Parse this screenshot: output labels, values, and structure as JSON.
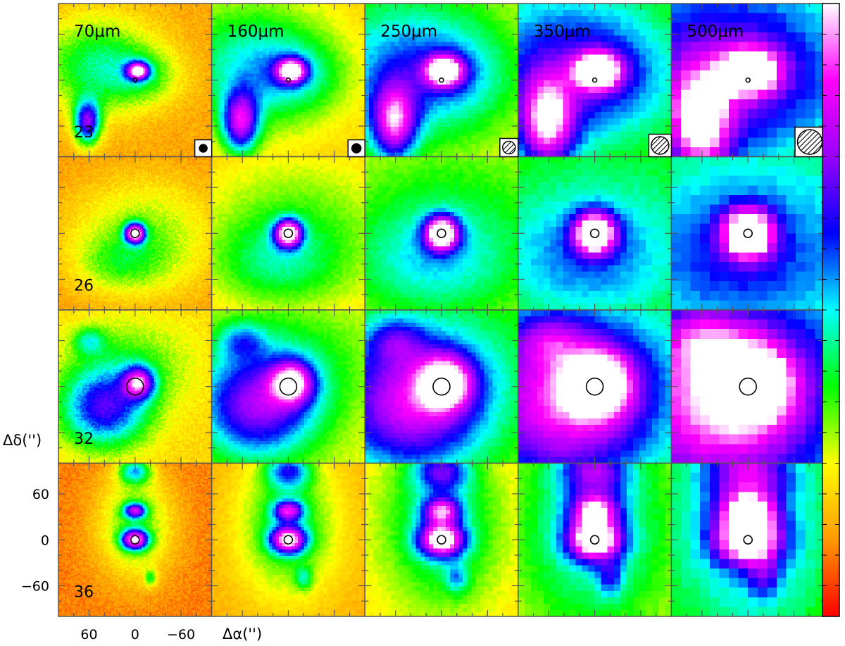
{
  "figure": {
    "wavelengths": [
      "70μm",
      "160μm",
      "250μm",
      "350μm",
      "500μm"
    ],
    "sources": [
      "23",
      "26",
      "32",
      "36"
    ],
    "beam_markers": [
      "filled-beam",
      "filled-beam",
      "hatched-beam",
      "hatched-beam",
      "hatched-beam"
    ],
    "axis_labels": {
      "y": "Δδ('')",
      "x": "Δα('')"
    },
    "y_ticks": [
      {
        "value": 60,
        "label": "60"
      },
      {
        "value": 0,
        "label": "0"
      },
      {
        "value": -60,
        "label": "−60"
      }
    ],
    "x_ticks": [
      {
        "value": 60,
        "label": "60"
      },
      {
        "value": 0,
        "label": "0"
      },
      {
        "value": -60,
        "label": "−60"
      }
    ],
    "colormap": [
      "#ff0000",
      "#ff9900",
      "#ffff00",
      "#00ff00",
      "#00ffff",
      "#0000ff",
      "#9900ff",
      "#ff00ff",
      "#ffffff"
    ],
    "colors": {
      "frame": "#555555",
      "marker": "#000000",
      "background": "#ffffff"
    }
  }
}
